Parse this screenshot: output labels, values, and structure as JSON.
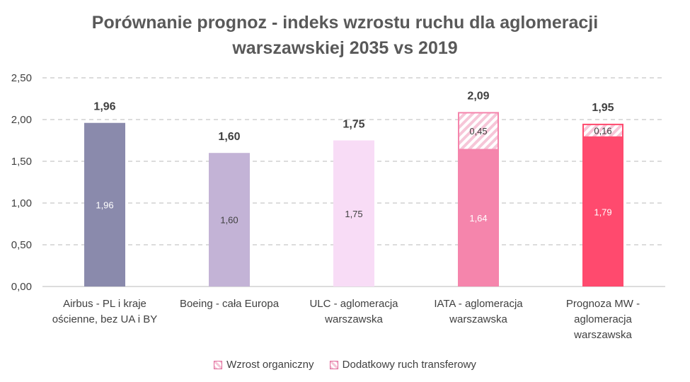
{
  "chart_data": {
    "type": "bar",
    "stacked": true,
    "title_lines": [
      "Porównanie prognoz - indeks wzrostu ruchu dla aglomeracji",
      "warszawskiej 2035 vs 2019"
    ],
    "ylim": [
      0,
      2.5
    ],
    "y_ticks": [
      "0,00",
      "0,50",
      "1,00",
      "1,50",
      "2,00",
      "2,50"
    ],
    "y_tick_values": [
      0,
      0.5,
      1.0,
      1.5,
      2.0,
      2.5
    ],
    "grid": true,
    "categories": [
      [
        "Airbus - PL i kraje",
        "ościenne, bez UA i BY"
      ],
      [
        "Boeing - cała Europa"
      ],
      [
        "ULC - aglomeracja",
        "warszawska"
      ],
      [
        "IATA - aglomeracja",
        "warszawska"
      ],
      [
        "Prognoza MW -",
        "aglomeracja",
        "warszawska"
      ]
    ],
    "series": [
      {
        "name": "Wzrost organiczny",
        "values": [
          1.96,
          1.6,
          1.75,
          1.64,
          1.79
        ],
        "labels": [
          "1,96",
          "1,60",
          "1,75",
          "1,64",
          "1,79"
        ],
        "colors": [
          "#8a8aac",
          "#c3b3d6",
          "#f8dcf6",
          "#f585ac",
          "#ff4a6e"
        ],
        "label_colors": [
          "#ffffff",
          "#404040",
          "#404040",
          "#ffffff",
          "#ffffff"
        ]
      },
      {
        "name": "Dodatkowy ruch transferowy",
        "values": [
          0,
          0,
          0,
          0.45,
          0.16
        ],
        "labels": [
          "",
          "",
          "",
          "0,45",
          "0,16"
        ],
        "pattern": "hatched"
      }
    ],
    "totals": [
      1.96,
      1.6,
      1.75,
      2.09,
      1.95
    ],
    "total_labels": [
      "1,96",
      "1,60",
      "1,75",
      "2,09",
      "1,95"
    ],
    "legend": {
      "position": "bottom",
      "items": [
        "Wzrost organiczny",
        "Dodatkowy ruch transferowy"
      ]
    }
  },
  "colors": {
    "title": "#595959",
    "axis_text": "#404040",
    "grid": "#c8c8c8",
    "hatch": "#f2a6c4",
    "legend_border": "#e06a9a"
  }
}
